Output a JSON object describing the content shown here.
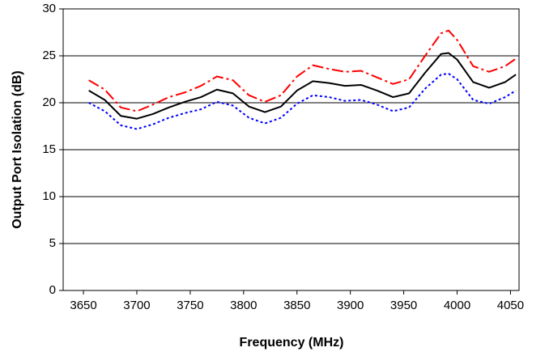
{
  "chart_data": {
    "type": "line",
    "xlabel": "Frequency (MHz)",
    "ylabel": "Output Port Isolation (dB)",
    "x": [
      3655,
      3670,
      3685,
      3700,
      3715,
      3730,
      3745,
      3760,
      3775,
      3790,
      3805,
      3820,
      3835,
      3850,
      3865,
      3880,
      3895,
      3910,
      3925,
      3940,
      3955,
      3970,
      3985,
      3992,
      4000,
      4015,
      4030,
      4045,
      4055
    ],
    "series": [
      {
        "color": "#ff0000",
        "dash": "14 4 3 4",
        "values": [
          22.4,
          21.4,
          19.5,
          19.1,
          19.8,
          20.6,
          21.1,
          21.8,
          22.8,
          22.4,
          20.8,
          20.1,
          20.8,
          22.8,
          24.0,
          23.6,
          23.3,
          23.4,
          22.7,
          22.0,
          22.5,
          25.0,
          27.4,
          27.7,
          26.7,
          23.9,
          23.3,
          23.9,
          24.7
        ]
      },
      {
        "color": "#000000",
        "dash": "none",
        "values": [
          21.3,
          20.3,
          18.6,
          18.3,
          18.8,
          19.5,
          20.1,
          20.6,
          21.4,
          21.0,
          19.6,
          19.0,
          19.6,
          21.3,
          22.3,
          22.1,
          21.8,
          21.9,
          21.3,
          20.6,
          21.0,
          23.2,
          25.2,
          25.3,
          24.6,
          22.2,
          21.6,
          22.2,
          23.0
        ]
      },
      {
        "color": "#0000ff",
        "dash": "3 3",
        "values": [
          20.0,
          19.1,
          17.6,
          17.2,
          17.7,
          18.4,
          18.9,
          19.3,
          20.1,
          19.7,
          18.4,
          17.8,
          18.4,
          19.9,
          20.8,
          20.6,
          20.2,
          20.3,
          19.8,
          19.1,
          19.5,
          21.5,
          23.0,
          23.1,
          22.5,
          20.3,
          19.9,
          20.6,
          21.3
        ]
      }
    ],
    "xlim": [
      3631,
      4058
    ],
    "ylim": [
      0,
      30
    ],
    "xticks": [
      3650,
      3700,
      3750,
      3800,
      3850,
      3900,
      3950,
      4000,
      4050
    ],
    "yticks": [
      0,
      5,
      10,
      15,
      20,
      25,
      30
    ],
    "grid": true
  }
}
